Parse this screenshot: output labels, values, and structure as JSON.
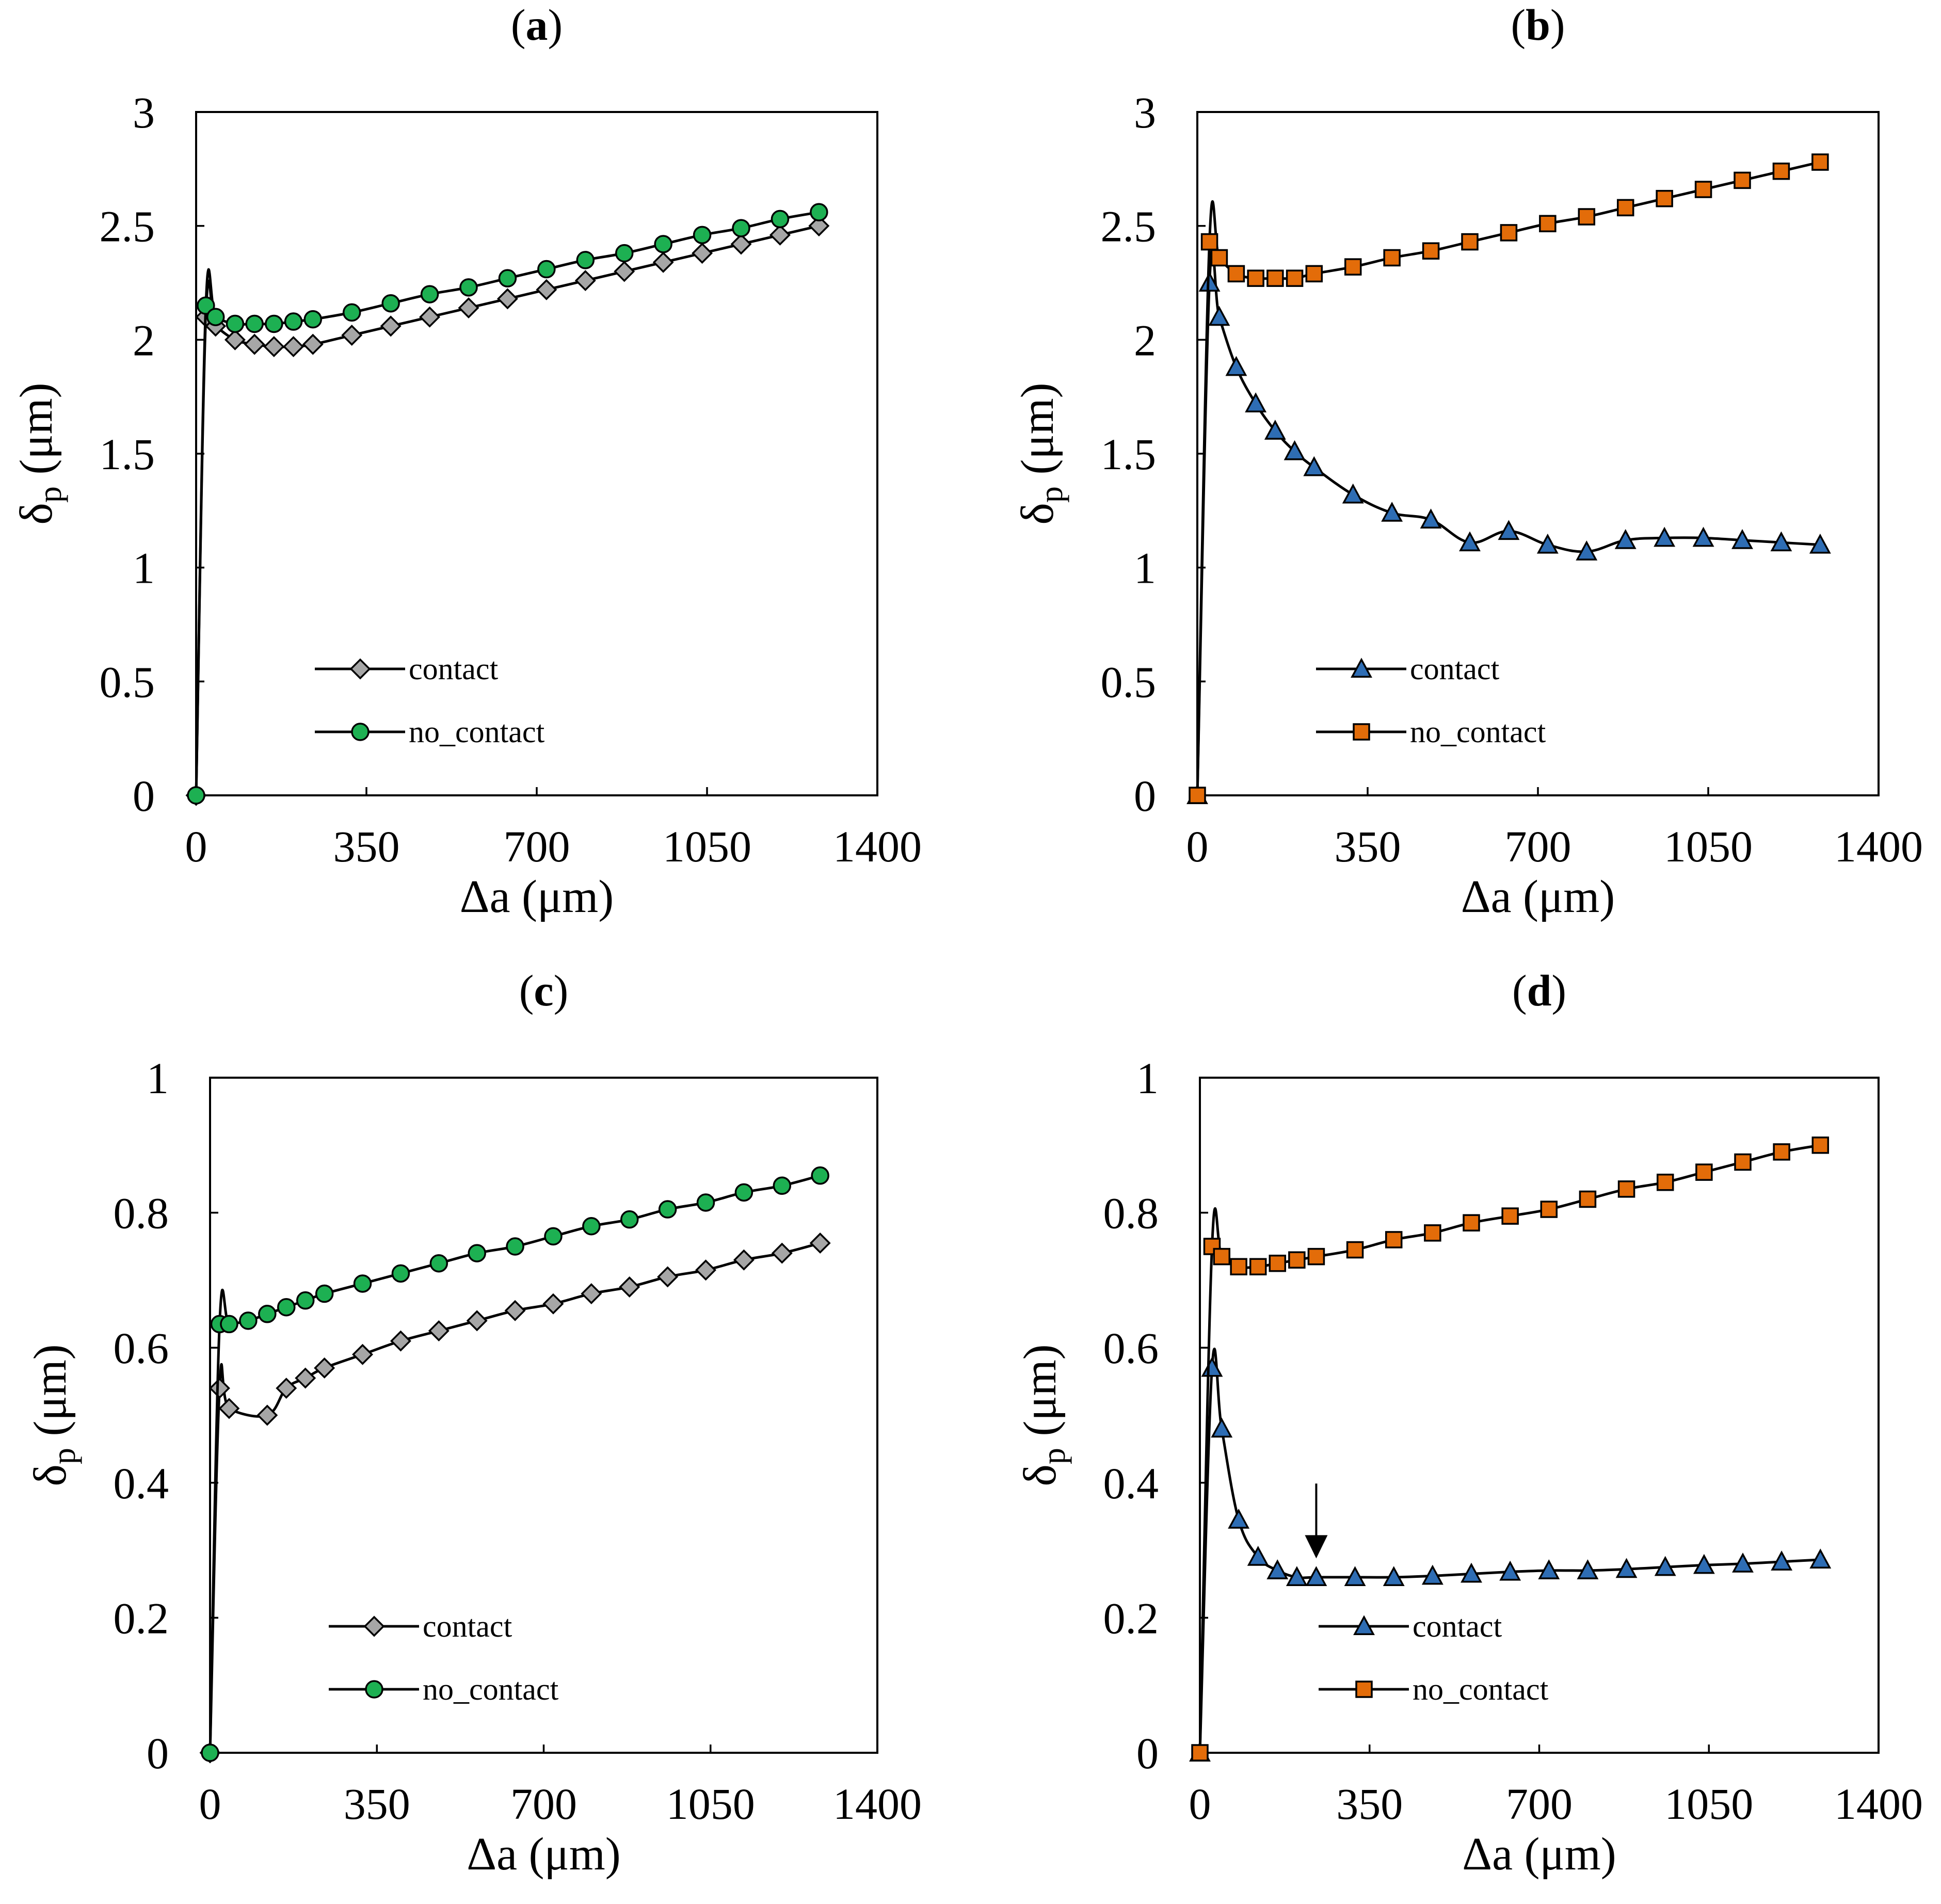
{
  "colors": {
    "green": "#1DB052",
    "gray": "#A6A6A6",
    "blue": "#2E6DB4",
    "orange": "#E36C09",
    "line": "#000000"
  },
  "chart_data": [
    {
      "panel": "a",
      "type": "line",
      "xlabel": "Δa (μm)",
      "ylabel": "δ",
      "ylabel_sub": "p",
      "ylabel_unit": " (μm)",
      "xlim": [
        0,
        1400
      ],
      "ylim": [
        0,
        3
      ],
      "xticks": [
        0,
        350,
        700,
        1050,
        1400
      ],
      "yticks": [
        0,
        0.5,
        1,
        1.5,
        2,
        2.5,
        3
      ],
      "ytick_labels": [
        "0",
        "0.5",
        "1",
        "1.5",
        "2",
        "2.5",
        "3"
      ],
      "legend_position": "lower-left",
      "series": [
        {
          "name": "contact",
          "marker": "diamond",
          "color": "#A6A6A6",
          "x": [
            0,
            20,
            40,
            80,
            120,
            160,
            200,
            240,
            320,
            400,
            480,
            560,
            640,
            720,
            800,
            880,
            960,
            1040,
            1120,
            1200,
            1280
          ],
          "y": [
            0,
            2.1,
            2.06,
            2.0,
            1.98,
            1.97,
            1.97,
            1.98,
            2.02,
            2.06,
            2.1,
            2.14,
            2.18,
            2.22,
            2.26,
            2.3,
            2.34,
            2.38,
            2.42,
            2.46,
            2.5
          ]
        },
        {
          "name": "no_contact",
          "marker": "circle",
          "color": "#1DB052",
          "x": [
            0,
            20,
            40,
            80,
            120,
            160,
            200,
            240,
            320,
            400,
            480,
            560,
            640,
            720,
            800,
            880,
            960,
            1040,
            1120,
            1200,
            1280
          ],
          "y": [
            0,
            2.15,
            2.1,
            2.07,
            2.07,
            2.07,
            2.08,
            2.09,
            2.12,
            2.16,
            2.2,
            2.23,
            2.27,
            2.31,
            2.35,
            2.38,
            2.42,
            2.46,
            2.49,
            2.53,
            2.56
          ]
        }
      ]
    },
    {
      "panel": "b",
      "type": "line",
      "xlabel": "Δa (μm)",
      "ylabel": "δ",
      "ylabel_sub": "p",
      "ylabel_unit": " (μm)",
      "xlim": [
        0,
        1400
      ],
      "ylim": [
        0,
        3
      ],
      "xticks": [
        0,
        350,
        700,
        1050,
        1400
      ],
      "yticks": [
        0,
        0.5,
        1,
        1.5,
        2,
        2.5,
        3
      ],
      "ytick_labels": [
        "0",
        "0.5",
        "1",
        "1.5",
        "2",
        "2.5",
        "3"
      ],
      "legend_position": "lower-left",
      "series": [
        {
          "name": "contact",
          "marker": "triangle",
          "color": "#2E6DB4",
          "x": [
            0,
            25,
            45,
            80,
            120,
            160,
            200,
            240,
            320,
            400,
            480,
            560,
            640,
            720,
            800,
            880,
            960,
            1040,
            1120,
            1200,
            1280
          ],
          "y": [
            0,
            2.25,
            2.1,
            1.88,
            1.72,
            1.6,
            1.51,
            1.44,
            1.32,
            1.24,
            1.21,
            1.11,
            1.16,
            1.1,
            1.07,
            1.12,
            1.13,
            1.13,
            1.12,
            1.11,
            1.1
          ]
        },
        {
          "name": "no_contact",
          "marker": "square",
          "color": "#E36C09",
          "x": [
            0,
            25,
            45,
            80,
            120,
            160,
            200,
            240,
            320,
            400,
            480,
            560,
            640,
            720,
            800,
            880,
            960,
            1040,
            1120,
            1200,
            1280
          ],
          "y": [
            0,
            2.43,
            2.36,
            2.29,
            2.27,
            2.27,
            2.27,
            2.29,
            2.32,
            2.36,
            2.39,
            2.43,
            2.47,
            2.51,
            2.54,
            2.58,
            2.62,
            2.66,
            2.7,
            2.74,
            2.78
          ]
        }
      ]
    },
    {
      "panel": "c",
      "type": "line",
      "xlabel": "Δa (μm)",
      "ylabel": "δ",
      "ylabel_sub": "p",
      "ylabel_unit": " (μm)",
      "xlim": [
        0,
        1400
      ],
      "ylim": [
        0,
        1
      ],
      "xticks": [
        0,
        350,
        700,
        1050,
        1400
      ],
      "yticks": [
        0,
        0.2,
        0.4,
        0.6,
        0.8,
        1
      ],
      "ytick_labels": [
        "0",
        "0.2",
        "0.4",
        "0.6",
        "0.8",
        "1"
      ],
      "legend_position": "lower-left",
      "series": [
        {
          "name": "contact",
          "marker": "diamond",
          "color": "#A6A6A6",
          "x": [
            0,
            20,
            40,
            120,
            160,
            200,
            240,
            320,
            400,
            480,
            560,
            640,
            720,
            800,
            880,
            960,
            1040,
            1120,
            1200,
            1280
          ],
          "y": [
            0,
            0.54,
            0.51,
            0.5,
            0.54,
            0.555,
            0.57,
            0.59,
            0.61,
            0.625,
            0.64,
            0.655,
            0.665,
            0.68,
            0.69,
            0.705,
            0.715,
            0.73,
            0.74,
            0.755
          ]
        },
        {
          "name": "no_contact",
          "marker": "circle",
          "color": "#1DB052",
          "x": [
            0,
            20,
            40,
            80,
            120,
            160,
            200,
            240,
            320,
            400,
            480,
            560,
            640,
            720,
            800,
            880,
            960,
            1040,
            1120,
            1200,
            1280
          ],
          "y": [
            0,
            0.635,
            0.635,
            0.64,
            0.65,
            0.66,
            0.67,
            0.68,
            0.695,
            0.71,
            0.725,
            0.74,
            0.75,
            0.765,
            0.78,
            0.79,
            0.805,
            0.815,
            0.83,
            0.84,
            0.855
          ]
        }
      ]
    },
    {
      "panel": "d",
      "type": "line",
      "xlabel": "Δa (μm)",
      "ylabel": "δ",
      "ylabel_sub": "p",
      "ylabel_unit": " (μm)",
      "xlim": [
        0,
        1400
      ],
      "ylim": [
        0,
        1
      ],
      "xticks": [
        0,
        350,
        700,
        1050,
        1400
      ],
      "yticks": [
        0,
        0.2,
        0.4,
        0.6,
        0.8,
        1
      ],
      "ytick_labels": [
        "0",
        "0.2",
        "0.4",
        "0.6",
        "0.8",
        "1"
      ],
      "legend_position": "lower-left",
      "annotation": {
        "type": "arrow",
        "x": 240,
        "y": 0.265
      },
      "series": [
        {
          "name": "contact",
          "marker": "triangle",
          "color": "#2E6DB4",
          "x": [
            0,
            25,
            45,
            80,
            120,
            160,
            200,
            240,
            320,
            400,
            480,
            560,
            640,
            720,
            800,
            880,
            960,
            1040,
            1120,
            1200,
            1280
          ],
          "y": [
            0,
            0.57,
            0.48,
            0.345,
            0.29,
            0.27,
            0.26,
            0.26,
            0.26,
            0.26,
            0.262,
            0.265,
            0.268,
            0.27,
            0.27,
            0.272,
            0.275,
            0.278,
            0.28,
            0.283,
            0.286
          ]
        },
        {
          "name": "no_contact",
          "marker": "square",
          "color": "#E36C09",
          "x": [
            0,
            25,
            45,
            80,
            120,
            160,
            200,
            240,
            320,
            400,
            480,
            560,
            640,
            720,
            800,
            880,
            960,
            1040,
            1120,
            1200,
            1280
          ],
          "y": [
            0,
            0.75,
            0.735,
            0.72,
            0.72,
            0.725,
            0.73,
            0.735,
            0.745,
            0.76,
            0.77,
            0.785,
            0.795,
            0.805,
            0.82,
            0.835,
            0.845,
            0.86,
            0.875,
            0.89,
            0.9
          ]
        }
      ]
    }
  ]
}
